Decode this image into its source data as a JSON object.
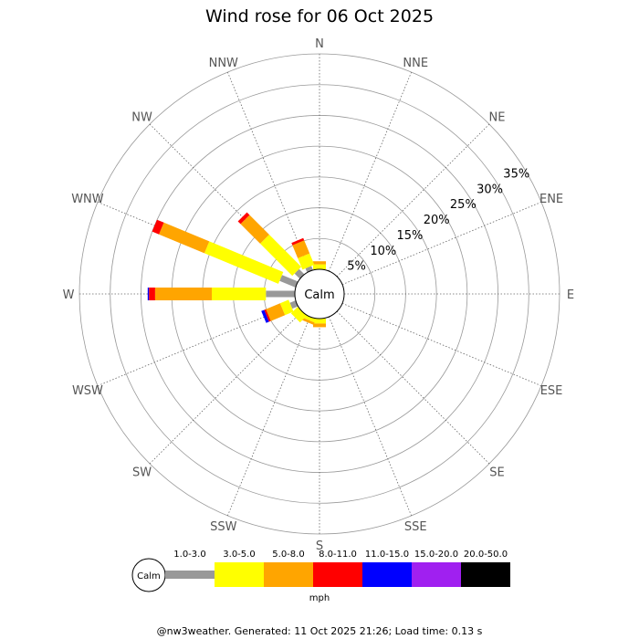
{
  "chart_data": {
    "type": "wind-rose",
    "title": "Wind rose for 06 Oct 2025",
    "calm_label": "Calm",
    "directions": [
      "N",
      "NNE",
      "NE",
      "ENE",
      "E",
      "ESE",
      "SE",
      "SSE",
      "S",
      "SSW",
      "SW",
      "WSW",
      "W",
      "WNW",
      "NW",
      "NNW"
    ],
    "rings_percent": [
      5,
      10,
      15,
      20,
      25,
      30,
      35
    ],
    "rmax_percent": 35,
    "ring_labels": [
      "5%",
      "10%",
      "15%",
      "20%",
      "25%",
      "30%",
      "35%"
    ],
    "bins": [
      {
        "label": "1.0-3.0",
        "color": "#999999"
      },
      {
        "label": "3.0-5.0",
        "color": "#ffff00"
      },
      {
        "label": "5.0-8.0",
        "color": "#ffa500"
      },
      {
        "label": "8.0-11.0",
        "color": "#ff0000"
      },
      {
        "label": "11.0-15.0",
        "color": "#0000ff"
      },
      {
        "label": "15.0-20.0",
        "color": "#a020f0"
      },
      {
        "label": "20.0-50.0",
        "color": "#000000"
      }
    ],
    "units": "mph",
    "frequencies_percent": {
      "N": [
        0.0,
        0.8,
        0.5,
        0.0,
        0.0,
        0.0,
        0.0
      ],
      "NNE": [
        0.0,
        0.0,
        0.0,
        0.0,
        0.0,
        0.0,
        0.0
      ],
      "NE": [
        0.0,
        0.0,
        0.0,
        0.0,
        0.0,
        0.0,
        0.0
      ],
      "ENE": [
        0.0,
        0.0,
        0.0,
        0.0,
        0.0,
        0.0,
        0.0
      ],
      "E": [
        0.0,
        0.0,
        0.0,
        0.0,
        0.0,
        0.0,
        0.0
      ],
      "ESE": [
        0.0,
        0.0,
        0.0,
        0.0,
        0.0,
        0.0,
        0.0
      ],
      "SE": [
        0.0,
        0.0,
        0.0,
        0.0,
        0.0,
        0.0,
        0.0
      ],
      "SSE": [
        0.0,
        0.0,
        0.0,
        0.0,
        0.0,
        0.0,
        0.0
      ],
      "S": [
        0.0,
        0.8,
        0.6,
        0.0,
        0.0,
        0.0,
        0.0
      ],
      "SSW": [
        0.0,
        0.6,
        0.4,
        0.0,
        0.0,
        0.0,
        0.0
      ],
      "SW": [
        0.0,
        1.5,
        0.0,
        0.0,
        0.0,
        0.0,
        0.0
      ],
      "WSW": [
        1.0,
        1.5,
        2.5,
        0.3,
        0.5,
        0.0,
        0.0
      ],
      "W": [
        4.7,
        8.8,
        9.2,
        1.0,
        0.2,
        0.0,
        0.0
      ],
      "WNW": [
        2.8,
        13.0,
        8.0,
        1.2,
        0.0,
        0.0,
        0.0
      ],
      "NW": [
        1.2,
        7.4,
        4.5,
        0.6,
        0.0,
        0.0,
        0.0
      ],
      "NNW": [
        0.7,
        2.0,
        2.3,
        0.4,
        0.0,
        0.0,
        0.0
      ]
    }
  },
  "footer": "@nw3weather. Generated: 11 Oct 2025 21:26; Load time: 0.13 s"
}
